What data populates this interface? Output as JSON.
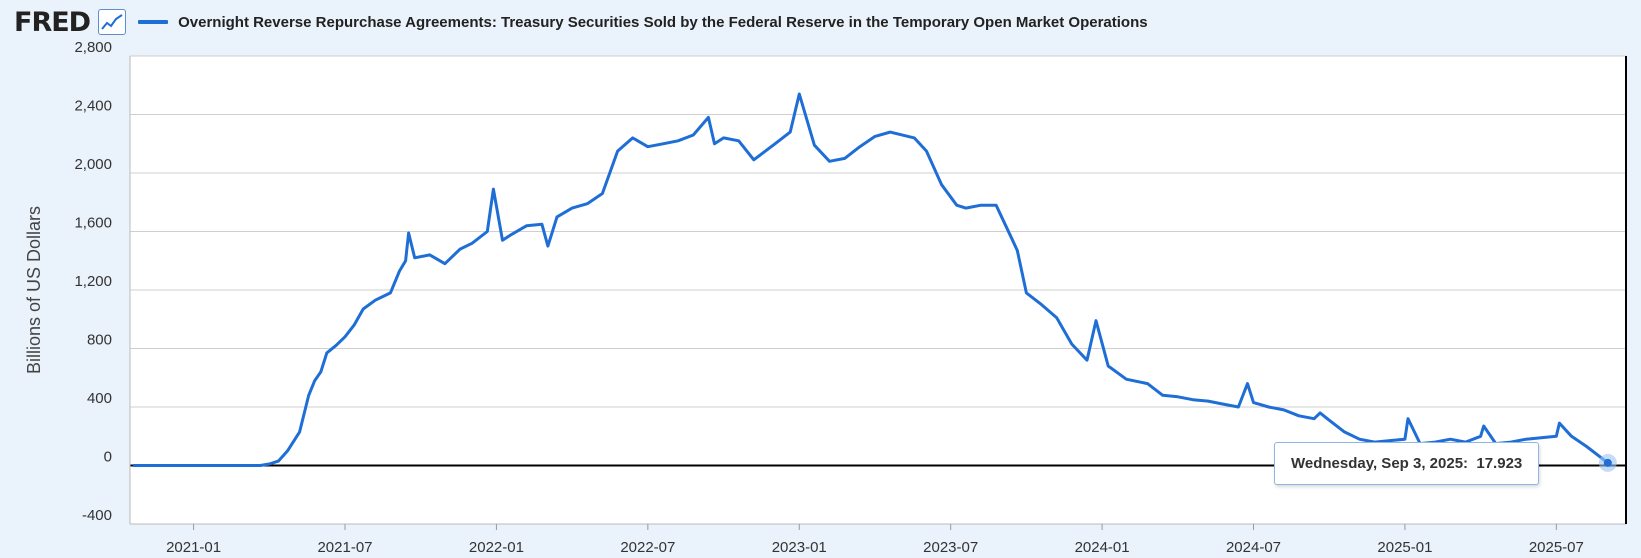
{
  "header": {
    "logo": "FRED",
    "title": "Overnight Reverse Repurchase Agreements: Treasury Securities Sold by the Federal Reserve in the Temporary Open Market Operations"
  },
  "colors": {
    "series": "#1e6ed6",
    "background": "#eaf2fb",
    "plot_bg": "#ffffff",
    "grid": "#cfcfcf"
  },
  "tooltip": {
    "date": "Wednesday, Sep 3, 2025:",
    "value": "17.923"
  },
  "chart_data": {
    "type": "line",
    "title": "Overnight Reverse Repurchase Agreements: Treasury Securities Sold by the Federal Reserve in the Temporary Open Market Operations",
    "xlabel": "",
    "ylabel": "Billions of US Dollars",
    "ylim": [
      -400,
      2800
    ],
    "xlim": [
      2020.79,
      2025.73
    ],
    "yticks": [
      {
        "value": 2800,
        "label": "2,800"
      },
      {
        "value": 2400,
        "label": "2,400"
      },
      {
        "value": 2000,
        "label": "2,000"
      },
      {
        "value": 1600,
        "label": "1,600"
      },
      {
        "value": 1200,
        "label": "1,200"
      },
      {
        "value": 800,
        "label": "800"
      },
      {
        "value": 400,
        "label": "400"
      },
      {
        "value": 0,
        "label": "0"
      },
      {
        "value": -400,
        "label": "-400"
      }
    ],
    "xticks": [
      {
        "value": 2021.0,
        "label": "2021-01"
      },
      {
        "value": 2021.5,
        "label": "2021-07"
      },
      {
        "value": 2022.0,
        "label": "2022-01"
      },
      {
        "value": 2022.5,
        "label": "2022-07"
      },
      {
        "value": 2023.0,
        "label": "2023-01"
      },
      {
        "value": 2023.5,
        "label": "2023-07"
      },
      {
        "value": 2024.0,
        "label": "2024-01"
      },
      {
        "value": 2024.5,
        "label": "2024-07"
      },
      {
        "value": 2025.0,
        "label": "2025-01"
      },
      {
        "value": 2025.5,
        "label": "2025-07"
      }
    ],
    "series": [
      {
        "name": "Overnight Reverse Repurchase Agreements: Treasury Securities Sold by the Federal Reserve in the Temporary Open Market Operations",
        "x": [
          2020.8,
          2020.95,
          2021.1,
          2021.2,
          2021.22,
          2021.25,
          2021.28,
          2021.31,
          2021.35,
          2021.38,
          2021.4,
          2021.42,
          2021.44,
          2021.47,
          2021.5,
          2021.53,
          2021.56,
          2021.6,
          2021.65,
          2021.68,
          2021.7,
          2021.71,
          2021.73,
          2021.78,
          2021.83,
          2021.88,
          2021.92,
          2021.97,
          2021.99,
          2022.02,
          2022.05,
          2022.1,
          2022.15,
          2022.17,
          2022.2,
          2022.25,
          2022.3,
          2022.35,
          2022.4,
          2022.45,
          2022.5,
          2022.55,
          2022.6,
          2022.65,
          2022.7,
          2022.72,
          2022.75,
          2022.8,
          2022.85,
          2022.92,
          2022.97,
          2023.0,
          2023.05,
          2023.1,
          2023.15,
          2023.2,
          2023.25,
          2023.3,
          2023.38,
          2023.42,
          2023.47,
          2023.52,
          2023.55,
          2023.6,
          2023.65,
          2023.7,
          2023.72,
          2023.75,
          2023.8,
          2023.85,
          2023.9,
          2023.95,
          2023.98,
          2024.02,
          2024.08,
          2024.15,
          2024.2,
          2024.25,
          2024.3,
          2024.35,
          2024.4,
          2024.45,
          2024.48,
          2024.5,
          2024.55,
          2024.6,
          2024.65,
          2024.7,
          2024.72,
          2024.75,
          2024.8,
          2024.85,
          2024.9,
          2024.95,
          2025.0,
          2025.01,
          2025.05,
          2025.1,
          2025.15,
          2025.2,
          2025.25,
          2025.26,
          2025.3,
          2025.35,
          2025.4,
          2025.45,
          2025.5,
          2025.51,
          2025.55,
          2025.6,
          2025.65,
          2025.67
        ],
        "y": [
          0,
          0,
          0,
          0,
          0,
          10,
          30,
          100,
          230,
          480,
          580,
          640,
          770,
          820,
          880,
          960,
          1070,
          1130,
          1180,
          1330,
          1400,
          1590,
          1420,
          1440,
          1380,
          1480,
          1520,
          1600,
          1890,
          1540,
          1580,
          1640,
          1650,
          1500,
          1700,
          1760,
          1790,
          1860,
          2150,
          2240,
          2180,
          2200,
          2220,
          2260,
          2380,
          2200,
          2240,
          2220,
          2090,
          2200,
          2280,
          2540,
          2190,
          2080,
          2100,
          2180,
          2250,
          2280,
          2240,
          2150,
          1920,
          1780,
          1760,
          1780,
          1780,
          1560,
          1470,
          1180,
          1100,
          1010,
          830,
          720,
          990,
          680,
          590,
          560,
          480,
          470,
          450,
          440,
          420,
          400,
          560,
          430,
          400,
          380,
          340,
          320,
          360,
          310,
          230,
          180,
          160,
          170,
          180,
          320,
          150,
          160,
          180,
          160,
          200,
          270,
          150,
          160,
          180,
          190,
          200,
          290,
          200,
          130,
          50,
          17.923
        ]
      }
    ]
  }
}
